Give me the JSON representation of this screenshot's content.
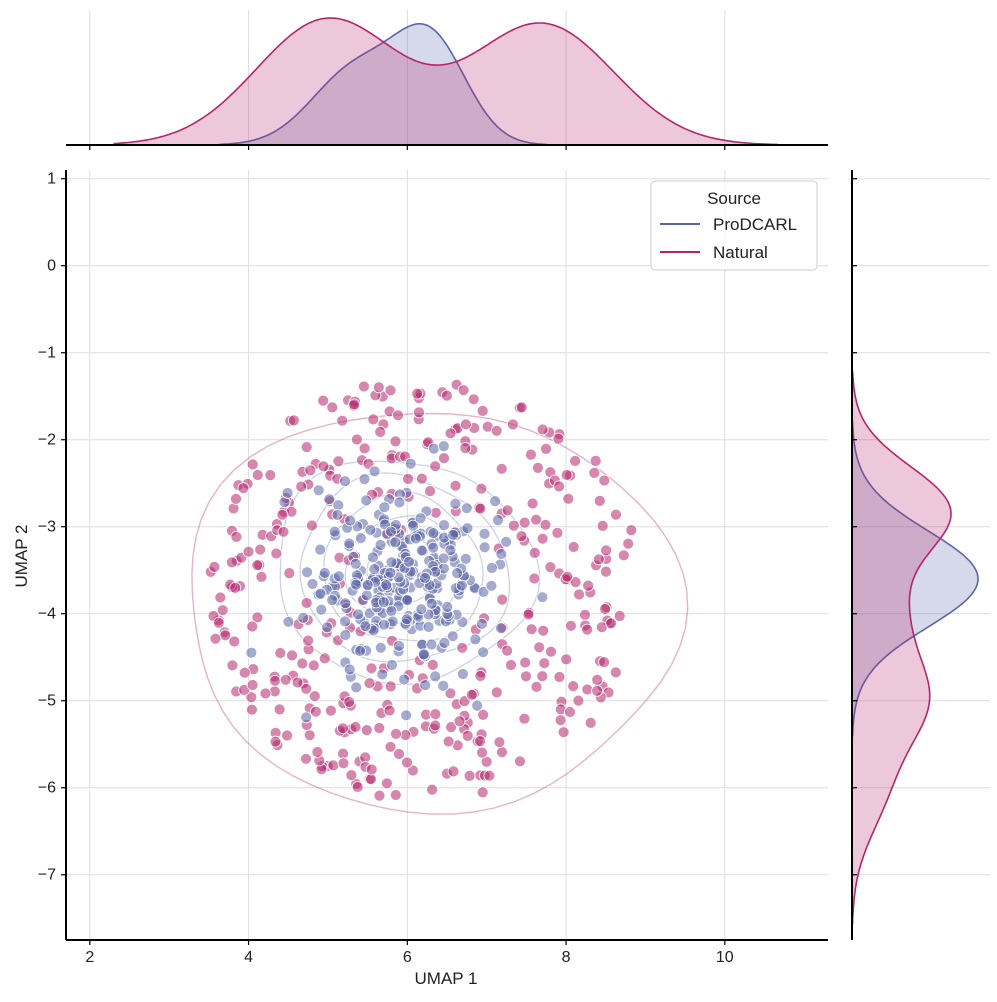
{
  "chart_data": {
    "type": "scatter",
    "title": "",
    "xlabel": "UMAP 1",
    "ylabel": "UMAP 2",
    "xlim": [
      1.7,
      11.3
    ],
    "ylim": [
      -7.75,
      1.1
    ],
    "xticks": [
      2,
      4,
      6,
      8,
      10
    ],
    "yticks": [
      1,
      0,
      -1,
      -2,
      -3,
      -4,
      -5,
      -6,
      -7
    ],
    "ytick_labels": [
      "1",
      "0",
      "−1",
      "−2",
      "−3",
      "−4",
      "−5",
      "−6",
      "−7"
    ],
    "grid": true,
    "legend": {
      "title": "Source",
      "position": "top-right"
    },
    "colors": {
      "ProDCARL": "#5b66a8",
      "Natural": "#b5256b"
    },
    "series": [
      {
        "name": "ProDCARL",
        "color": "#5b66a8",
        "center": [
          5.9,
          -3.6
        ],
        "spread": [
          0.55,
          0.55
        ],
        "n_points": 300,
        "marginal_x_peaks": [
          [
            5.35,
            0.55,
            0.45
          ],
          [
            6.3,
            0.45,
            0.6
          ]
        ],
        "marginal_y_peaks": [
          [
            -3.6,
            0.55,
            1.0
          ]
        ],
        "contour_levels": 5
      },
      {
        "name": "Natural",
        "color": "#b5256b",
        "center": [
          6.2,
          -3.7
        ],
        "spread": [
          1.45,
          1.3
        ],
        "n_points": 380,
        "marginal_x_peaks": [
          [
            5.0,
            0.9,
            0.75
          ],
          [
            7.7,
            0.9,
            0.72
          ]
        ],
        "marginal_y_peaks": [
          [
            -2.8,
            0.5,
            0.75
          ],
          [
            -4.0,
            0.55,
            0.35
          ],
          [
            -5.0,
            0.5,
            0.5
          ],
          [
            -6.0,
            0.55,
            0.25
          ]
        ],
        "contour_levels": 1
      }
    ]
  }
}
